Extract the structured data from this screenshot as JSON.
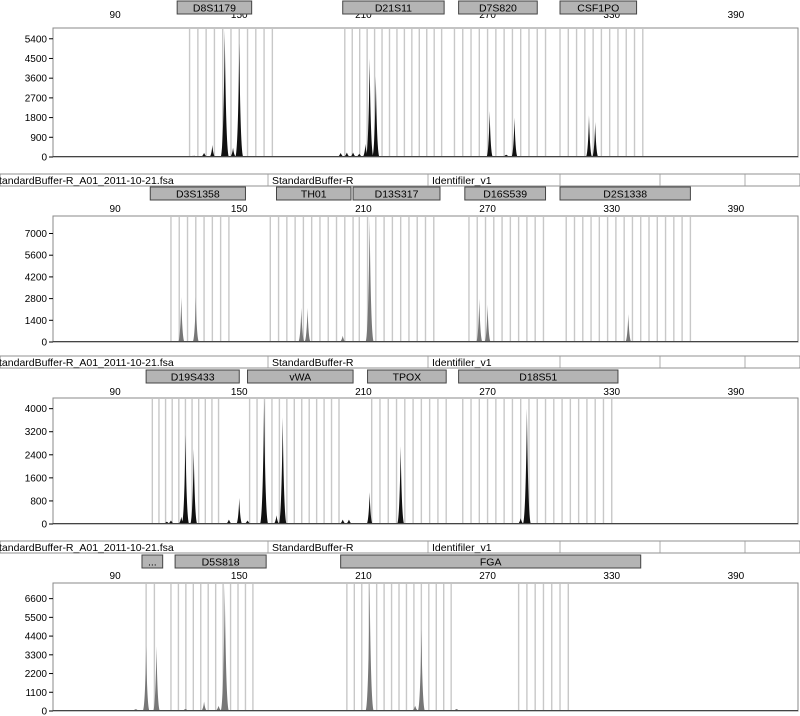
{
  "x_ticks": [
    "90",
    "150",
    "210",
    "270",
    "330",
    "390"
  ],
  "info_bar": {
    "file": "StandardBuffer-R_A01_2011-10-21.fsa",
    "sample": "StandardBuffer-R",
    "panel": "Identifiler_v1"
  },
  "colors": {
    "peak_dark": "#111111",
    "peak_gray": "#777777",
    "bin": "#c8c8c8",
    "marker_fill": "#b4b4b4"
  },
  "chart_data": [
    {
      "type": "area",
      "color": "dark",
      "x_range": [
        60,
        420
      ],
      "y_range": [
        0,
        5800
      ],
      "yticks": [
        0,
        900,
        1800,
        2700,
        3600,
        4500,
        5400
      ],
      "markers": [
        {
          "label": "D8S1179",
          "start": 120,
          "end": 156
        },
        {
          "label": "D21S11",
          "start": 200,
          "end": 249
        },
        {
          "label": "D7S820",
          "start": 256,
          "end": 294
        },
        {
          "label": "CSF1PO",
          "start": 305,
          "end": 342
        }
      ],
      "bins": [
        {
          "start": 126,
          "end": 167,
          "step": 4
        },
        {
          "start": 201,
          "end": 248,
          "step": 3.6
        },
        {
          "start": 254,
          "end": 300,
          "step": 4
        },
        {
          "start": 305,
          "end": 345,
          "step": 4
        }
      ],
      "peaks": [
        {
          "x": 128,
          "height": 40
        },
        {
          "x": 133,
          "height": 180
        },
        {
          "x": 137,
          "height": 550
        },
        {
          "x": 143,
          "height": 5800
        },
        {
          "x": 147,
          "height": 420
        },
        {
          "x": 150,
          "height": 5200
        },
        {
          "x": 199,
          "height": 180
        },
        {
          "x": 202,
          "height": 200
        },
        {
          "x": 205,
          "height": 200
        },
        {
          "x": 208,
          "height": 150
        },
        {
          "x": 211,
          "height": 600
        },
        {
          "x": 213,
          "height": 4500
        },
        {
          "x": 216,
          "height": 3700
        },
        {
          "x": 271,
          "height": 2100
        },
        {
          "x": 279,
          "height": 100
        },
        {
          "x": 283,
          "height": 1800
        },
        {
          "x": 319,
          "height": 1900
        },
        {
          "x": 322,
          "height": 1600
        }
      ]
    },
    {
      "type": "area",
      "color": "gray",
      "x_range": [
        60,
        420
      ],
      "y_range": [
        0,
        8000
      ],
      "yticks": [
        0,
        1400,
        2800,
        4200,
        5600,
        7000
      ],
      "markers": [
        {
          "label": "D3S1358",
          "start": 107,
          "end": 153
        },
        {
          "label": "TH01",
          "start": 168,
          "end": 204
        },
        {
          "label": "D13S317",
          "start": 205,
          "end": 247
        },
        {
          "label": "D16S539",
          "start": 259,
          "end": 298
        },
        {
          "label": "D2S1338",
          "start": 305,
          "end": 368
        }
      ],
      "bins": [
        {
          "start": 117,
          "end": 148,
          "step": 4
        },
        {
          "start": 165,
          "end": 205,
          "step": 4
        },
        {
          "start": 208,
          "end": 246,
          "step": 4
        },
        {
          "start": 261,
          "end": 298,
          "step": 4
        },
        {
          "start": 308,
          "end": 370,
          "step": 4
        }
      ],
      "peaks": [
        {
          "x": 122,
          "height": 2900
        },
        {
          "x": 129,
          "height": 2900
        },
        {
          "x": 180,
          "height": 2200
        },
        {
          "x": 183,
          "height": 2200
        },
        {
          "x": 200,
          "height": 400
        },
        {
          "x": 213,
          "height": 8000
        },
        {
          "x": 266,
          "height": 2800
        },
        {
          "x": 270,
          "height": 2400
        },
        {
          "x": 338,
          "height": 1800
        }
      ]
    },
    {
      "type": "area",
      "color": "dark",
      "x_range": [
        60,
        420
      ],
      "y_range": [
        0,
        4300
      ],
      "yticks": [
        0,
        800,
        1600,
        2400,
        3200,
        4000
      ],
      "markers": [
        {
          "label": "D19S433",
          "start": 105,
          "end": 150
        },
        {
          "label": "vWA",
          "start": 154,
          "end": 205
        },
        {
          "label": "TPOX",
          "start": 212,
          "end": 250
        },
        {
          "label": "D18S51",
          "start": 256,
          "end": 333
        }
      ],
      "bins": [
        {
          "start": 108,
          "end": 142,
          "step": 3.2
        },
        {
          "start": 155,
          "end": 200,
          "step": 3.6
        },
        {
          "start": 214,
          "end": 250,
          "step": 4
        },
        {
          "start": 258,
          "end": 330,
          "step": 4
        }
      ],
      "peaks": [
        {
          "x": 115,
          "height": 80
        },
        {
          "x": 117,
          "height": 120
        },
        {
          "x": 122,
          "height": 250
        },
        {
          "x": 124,
          "height": 3100
        },
        {
          "x": 128,
          "height": 2600
        },
        {
          "x": 145,
          "height": 150
        },
        {
          "x": 150,
          "height": 900
        },
        {
          "x": 154,
          "height": 120
        },
        {
          "x": 162,
          "height": 4300
        },
        {
          "x": 168,
          "height": 300
        },
        {
          "x": 171,
          "height": 3700
        },
        {
          "x": 200,
          "height": 150
        },
        {
          "x": 203,
          "height": 150
        },
        {
          "x": 213,
          "height": 1100
        },
        {
          "x": 228,
          "height": 2700
        },
        {
          "x": 286,
          "height": 200
        },
        {
          "x": 289,
          "height": 4000
        }
      ]
    },
    {
      "type": "area",
      "color": "gray",
      "x_range": [
        60,
        420
      ],
      "y_range": [
        0,
        7400
      ],
      "yticks": [
        0,
        1100,
        2200,
        3300,
        4400,
        5500,
        6600
      ],
      "markers": [
        {
          "label": "...",
          "start": 103,
          "end": 113
        },
        {
          "label": "D5S818",
          "start": 119,
          "end": 163
        },
        {
          "label": "FGA",
          "start": 199,
          "end": 344
        }
      ],
      "bins": [
        {
          "start": 105,
          "end": 112,
          "step": 4
        },
        {
          "start": 117,
          "end": 159,
          "step": 3.6
        },
        {
          "start": 202,
          "end": 255,
          "step": 3.6
        },
        {
          "start": 285,
          "end": 310,
          "step": 4
        }
      ],
      "peaks": [
        {
          "x": 100,
          "height": 100
        },
        {
          "x": 105,
          "height": 3800
        },
        {
          "x": 110,
          "height": 3800
        },
        {
          "x": 124,
          "height": 120
        },
        {
          "x": 133,
          "height": 550
        },
        {
          "x": 140,
          "height": 300
        },
        {
          "x": 143,
          "height": 7400
        },
        {
          "x": 213,
          "height": 7400
        },
        {
          "x": 235,
          "height": 300
        },
        {
          "x": 238,
          "height": 4800
        },
        {
          "x": 255,
          "height": 120
        }
      ]
    }
  ]
}
